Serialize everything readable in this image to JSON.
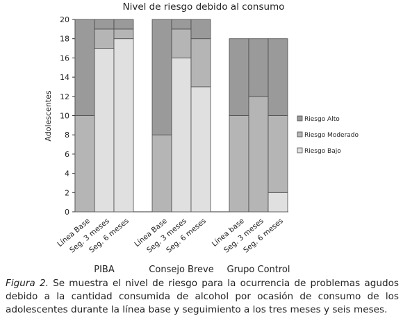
{
  "chart_data": {
    "type": "bar",
    "stacked": true,
    "title": "Nivel de riesgo debido al consumo",
    "ylabel": "Adolescentes",
    "ylim": [
      0,
      20
    ],
    "yticks": [
      "0",
      "2",
      "4",
      "6",
      "8",
      "10",
      "12",
      "14",
      "16",
      "18",
      "20"
    ],
    "grid": false,
    "legend_position": "right",
    "groups": [
      {
        "name": "PIBA",
        "categories": [
          "Línea Base",
          "Seg. 3 meses",
          "Seg. 6 meses"
        ],
        "bajo": [
          0,
          17,
          18
        ],
        "moderado": [
          10,
          2,
          1
        ],
        "alto": [
          10,
          1,
          1
        ]
      },
      {
        "name": "Consejo Breve",
        "categories": [
          "Línea Base",
          "Seg. 3 meses",
          "Seg. 6 meses"
        ],
        "bajo": [
          0,
          16,
          13
        ],
        "moderado": [
          8,
          3,
          5
        ],
        "alto": [
          12,
          1,
          2
        ]
      },
      {
        "name": "Grupo Control",
        "categories": [
          "Línea base",
          "Seg. 3 meses",
          "Seg. 6 meses"
        ],
        "bajo": [
          0,
          0,
          2
        ],
        "moderado": [
          10,
          12,
          8
        ],
        "alto": [
          8,
          6,
          8
        ]
      }
    ],
    "series": [
      {
        "key": "alto",
        "name": "Riesgo Alto",
        "color": "#9a9a9a"
      },
      {
        "key": "moderado",
        "name": "Riesgo Moderado",
        "color": "#b5b5b5"
      },
      {
        "key": "bajo",
        "name": "Riesgo Bajo",
        "color": "#e0e0e0"
      }
    ]
  },
  "caption": {
    "figure_label": "Figura 2.",
    "text": "Se muestra el nivel de riesgo para la ocurrencia de problemas agudos debido a la cantidad consumida de alcohol por ocasión de consumo de los adolescentes durante la línea base y seguimiento a los tres meses y seis meses."
  }
}
